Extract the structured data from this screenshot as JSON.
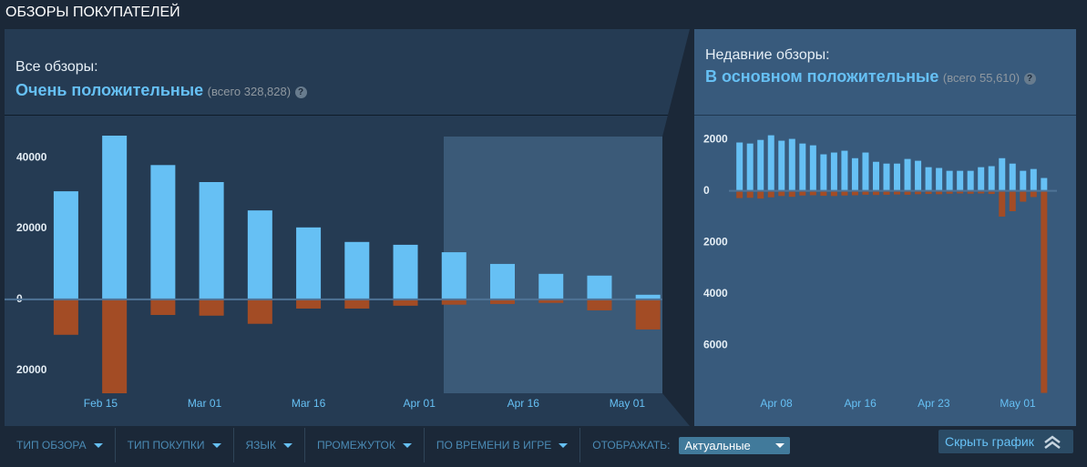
{
  "header": {
    "title": "ОБЗОРЫ ПОКУПАТЕЛЕЙ"
  },
  "panels": [
    {
      "label": "Все обзоры:",
      "rating": "Очень положительные",
      "total": "(всего 328,828)",
      "help": "?"
    },
    {
      "label": "Недавние обзоры:",
      "rating": "В основном положительные",
      "total": "(всего 55,610)",
      "help": "?"
    }
  ],
  "chart_data": [
    {
      "type": "bar",
      "x": [
        "Feb 10",
        "Feb 17",
        "Feb 24",
        "Mar 02",
        "Mar 09",
        "Mar 16",
        "Mar 23",
        "Mar 30",
        "Apr 06",
        "Apr 13",
        "Apr 20",
        "Apr 27",
        "May 04"
      ],
      "xlim": [
        "Feb 06",
        "May 07"
      ],
      "xticks": [
        "Feb 15",
        "Mar 01",
        "Mar 16",
        "Apr 01",
        "Apr 16",
        "May 01"
      ],
      "series": [
        {
          "color": "#66c0f4",
          "values": [
            30500,
            46200,
            37900,
            33100,
            25100,
            20300,
            16200,
            15400,
            13300,
            10000,
            7200,
            6700,
            1300
          ]
        },
        {
          "color": "#a34c25",
          "values": [
            -10000,
            -26500,
            -4400,
            -4600,
            -6900,
            -2600,
            -2600,
            -1800,
            -1500,
            -1300,
            -1000,
            -3100,
            -8500
          ]
        }
      ],
      "ylim": [
        -26500,
        48000
      ],
      "yticks": [
        40000,
        20000,
        0,
        {
          "value": -20000,
          "label": "20000"
        }
      ],
      "grid": false
    },
    {
      "type": "bar",
      "x": [
        "Apr 04",
        "Apr 05",
        "Apr 06",
        "Apr 07",
        "Apr 08",
        "Apr 09",
        "Apr 10",
        "Apr 11",
        "Apr 12",
        "Apr 13",
        "Apr 14",
        "Apr 15",
        "Apr 16",
        "Apr 17",
        "Apr 18",
        "Apr 19",
        "Apr 20",
        "Apr 21",
        "Apr 22",
        "Apr 23",
        "Apr 24",
        "Apr 25",
        "Apr 26",
        "Apr 27",
        "Apr 28",
        "Apr 29",
        "Apr 30",
        "May 01",
        "May 02",
        "May 03"
      ],
      "xlim": [
        "Apr 03",
        "May 04"
      ],
      "xticks": [
        "Apr 08",
        "Apr 16",
        "Apr 23",
        "May 01"
      ],
      "series": [
        {
          "color": "#66c0f4",
          "values": [
            1880,
            1840,
            1980,
            2160,
            1950,
            2020,
            1840,
            1770,
            1420,
            1490,
            1560,
            1270,
            1490,
            1130,
            1060,
            1060,
            1240,
            1170,
            920,
            890,
            780,
            780,
            780,
            920,
            960,
            1270,
            1060,
            780,
            850,
            500
          ]
        },
        {
          "color": "#a34c25",
          "values": [
            -280,
            -270,
            -300,
            -250,
            -200,
            -230,
            -180,
            -170,
            -190,
            -200,
            -180,
            -170,
            -150,
            -160,
            -150,
            -140,
            -150,
            -130,
            -120,
            -130,
            -110,
            -100,
            -110,
            -100,
            -120,
            -1000,
            -790,
            -420,
            -240,
            -7850
          ]
        }
      ],
      "ylim": [
        -7900,
        2500
      ],
      "yticks": [
        2000,
        0,
        {
          "value": -2000,
          "label": "2000"
        },
        {
          "value": -4000,
          "label": "4000"
        },
        {
          "value": -6000,
          "label": "6000"
        }
      ],
      "grid": false
    }
  ],
  "filters": {
    "items": [
      "ТИП ОБЗОРА",
      "ТИП ПОКУПКИ",
      "ЯЗЫК",
      "ПРОМЕЖУТОК",
      "ПО ВРЕМЕНИ В ИГРЕ"
    ],
    "display_label": "ОТОБРАЖАТЬ:",
    "display_value": "Актуальные",
    "hide_button": "Скрыть график"
  }
}
